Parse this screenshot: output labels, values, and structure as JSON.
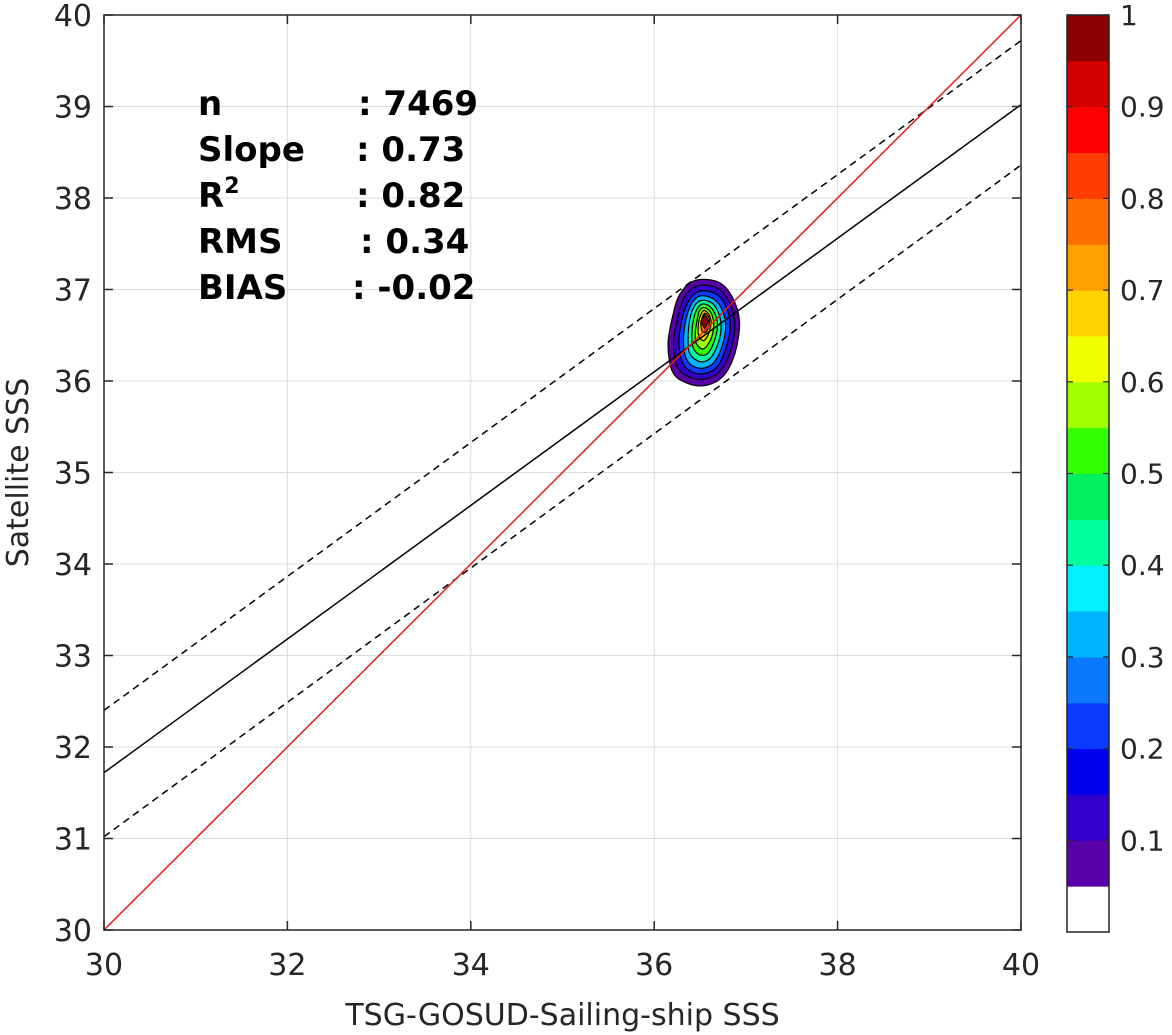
{
  "chart_data": {
    "type": "contour-scatter",
    "xlabel": "TSG-GOSUD-Sailing-ship SSS",
    "ylabel": "Satellite SSS",
    "xlim": [
      30,
      40
    ],
    "ylim": [
      30,
      40
    ],
    "xticks": [
      "30",
      "32",
      "34",
      "36",
      "38",
      "40"
    ],
    "yticks": [
      "30",
      "31",
      "32",
      "33",
      "34",
      "35",
      "36",
      "37",
      "38",
      "39",
      "40"
    ],
    "grid": true,
    "stats": [
      {
        "label": "n",
        "value": ": 7469"
      },
      {
        "label": "Slope",
        "value": ": 0.73"
      },
      {
        "label": "R",
        "sup": "2",
        "value": ": 0.82"
      },
      {
        "label": "RMS",
        "value": ": 0.34"
      },
      {
        "label": "BIAS",
        "value": ": -0.02"
      }
    ],
    "lines": {
      "identity": {
        "color": "#e31a1c",
        "points": [
          [
            30,
            30
          ],
          [
            40,
            40
          ]
        ]
      },
      "regression": {
        "color": "#000000",
        "points": [
          [
            30,
            31.72
          ],
          [
            40,
            39.02
          ]
        ]
      },
      "regression_upper": {
        "color": "#000000",
        "dash": true,
        "points": [
          [
            30,
            32.4
          ],
          [
            40,
            39.72
          ]
        ]
      },
      "regression_lower": {
        "color": "#000000",
        "dash": true,
        "points": [
          [
            30,
            31.02
          ],
          [
            40,
            38.36
          ]
        ]
      }
    },
    "density_peak": {
      "x": 36.55,
      "y": 36.65,
      "value": 1.0
    },
    "density_contours": [
      {
        "level": 0.05,
        "points": [
          [
            36.45,
            37.1
          ],
          [
            36.7,
            37.08
          ],
          [
            36.85,
            36.92
          ],
          [
            36.93,
            36.65
          ],
          [
            36.88,
            36.3
          ],
          [
            36.75,
            36.05
          ],
          [
            36.55,
            35.95
          ],
          [
            36.35,
            35.98
          ],
          [
            36.2,
            36.1
          ],
          [
            36.15,
            36.4
          ],
          [
            36.2,
            36.7
          ],
          [
            36.28,
            36.95
          ]
        ]
      },
      {
        "level": 0.1,
        "points": [
          [
            36.47,
            37.04
          ],
          [
            36.68,
            37.02
          ],
          [
            36.81,
            36.88
          ],
          [
            36.88,
            36.63
          ],
          [
            36.83,
            36.32
          ],
          [
            36.71,
            36.1
          ],
          [
            36.54,
            36.02
          ],
          [
            36.37,
            36.05
          ],
          [
            36.25,
            36.16
          ],
          [
            36.21,
            36.42
          ],
          [
            36.26,
            36.7
          ],
          [
            36.33,
            36.92
          ]
        ]
      },
      {
        "level": 0.2,
        "points": [
          [
            36.49,
            36.98
          ],
          [
            36.66,
            36.96
          ],
          [
            36.77,
            36.84
          ],
          [
            36.83,
            36.62
          ],
          [
            36.78,
            36.35
          ],
          [
            36.68,
            36.15
          ],
          [
            36.53,
            36.08
          ],
          [
            36.39,
            36.11
          ],
          [
            36.3,
            36.22
          ],
          [
            36.27,
            36.45
          ],
          [
            36.31,
            36.7
          ],
          [
            36.38,
            36.88
          ]
        ]
      },
      {
        "level": 0.3,
        "points": [
          [
            36.5,
            36.93
          ],
          [
            36.64,
            36.9
          ],
          [
            36.73,
            36.8
          ],
          [
            36.78,
            36.61
          ],
          [
            36.74,
            36.38
          ],
          [
            36.65,
            36.2
          ],
          [
            36.53,
            36.14
          ],
          [
            36.41,
            36.17
          ],
          [
            36.34,
            36.27
          ],
          [
            36.32,
            36.47
          ],
          [
            36.35,
            36.69
          ],
          [
            36.41,
            36.85
          ]
        ]
      },
      {
        "level": 0.4,
        "points": [
          [
            36.51,
            36.88
          ],
          [
            36.62,
            36.86
          ],
          [
            36.69,
            36.77
          ],
          [
            36.73,
            36.61
          ],
          [
            36.7,
            36.42
          ],
          [
            36.62,
            36.26
          ],
          [
            36.53,
            36.21
          ],
          [
            36.44,
            36.24
          ],
          [
            36.38,
            36.32
          ],
          [
            36.37,
            36.49
          ],
          [
            36.39,
            36.68
          ],
          [
            36.44,
            36.82
          ]
        ]
      },
      {
        "level": 0.5,
        "points": [
          [
            36.52,
            36.84
          ],
          [
            36.6,
            36.82
          ],
          [
            36.66,
            36.74
          ],
          [
            36.69,
            36.61
          ],
          [
            36.66,
            36.45
          ],
          [
            36.6,
            36.32
          ],
          [
            36.53,
            36.28
          ],
          [
            36.46,
            36.31
          ],
          [
            36.42,
            36.38
          ],
          [
            36.41,
            36.52
          ],
          [
            36.43,
            36.68
          ],
          [
            36.47,
            36.79
          ]
        ]
      },
      {
        "level": 0.6,
        "points": [
          [
            36.53,
            36.8
          ],
          [
            36.59,
            36.78
          ],
          [
            36.63,
            36.72
          ],
          [
            36.65,
            36.62
          ],
          [
            36.63,
            36.49
          ],
          [
            36.58,
            36.39
          ],
          [
            36.53,
            36.35
          ],
          [
            36.48,
            36.38
          ],
          [
            36.45,
            36.44
          ],
          [
            36.45,
            36.55
          ],
          [
            36.47,
            36.67
          ],
          [
            36.49,
            36.76
          ]
        ]
      },
      {
        "level": 0.7,
        "points": [
          [
            36.54,
            36.77
          ],
          [
            36.58,
            36.75
          ],
          [
            36.61,
            36.7
          ],
          [
            36.62,
            36.63
          ],
          [
            36.6,
            36.54
          ],
          [
            36.57,
            36.47
          ],
          [
            36.53,
            36.44
          ],
          [
            36.5,
            36.47
          ],
          [
            36.48,
            36.52
          ],
          [
            36.48,
            36.59
          ],
          [
            36.49,
            36.67
          ],
          [
            36.51,
            36.73
          ]
        ]
      },
      {
        "level": 0.8,
        "points": [
          [
            36.55,
            36.74
          ],
          [
            36.58,
            36.72
          ],
          [
            36.6,
            36.68
          ],
          [
            36.6,
            36.63
          ],
          [
            36.59,
            36.58
          ],
          [
            36.57,
            36.54
          ],
          [
            36.54,
            36.53
          ],
          [
            36.52,
            36.55
          ],
          [
            36.51,
            36.59
          ],
          [
            36.51,
            36.63
          ],
          [
            36.52,
            36.68
          ],
          [
            36.53,
            36.71
          ]
        ]
      },
      {
        "level": 0.9,
        "points": [
          [
            36.55,
            36.71
          ],
          [
            36.57,
            36.7
          ],
          [
            36.58,
            36.67
          ],
          [
            36.58,
            36.64
          ],
          [
            36.57,
            36.61
          ],
          [
            36.56,
            36.59
          ],
          [
            36.55,
            36.59
          ],
          [
            36.54,
            36.6
          ],
          [
            36.53,
            36.62
          ],
          [
            36.53,
            36.65
          ],
          [
            36.54,
            36.68
          ],
          [
            36.54,
            36.7
          ]
        ]
      }
    ],
    "colorbar": {
      "min": 0,
      "max": 1,
      "ticks": [
        "0.1",
        "0.2",
        "0.3",
        "0.4",
        "0.5",
        "0.6",
        "0.7",
        "0.8",
        "0.9",
        "1"
      ],
      "tick_values": [
        0.1,
        0.2,
        0.3,
        0.4,
        0.5,
        0.6,
        0.7,
        0.8,
        0.9,
        1.0
      ],
      "colors": [
        "#ffffff",
        "#5a00a8",
        "#3200c8",
        "#0000ee",
        "#0a3cff",
        "#0a78ff",
        "#00b4ff",
        "#00f0ff",
        "#00ffa0",
        "#00f060",
        "#32ff00",
        "#a0ff00",
        "#f0ff00",
        "#ffd200",
        "#ffa000",
        "#ff6e00",
        "#ff3c00",
        "#ff0000",
        "#d40000",
        "#8b0000"
      ]
    }
  }
}
